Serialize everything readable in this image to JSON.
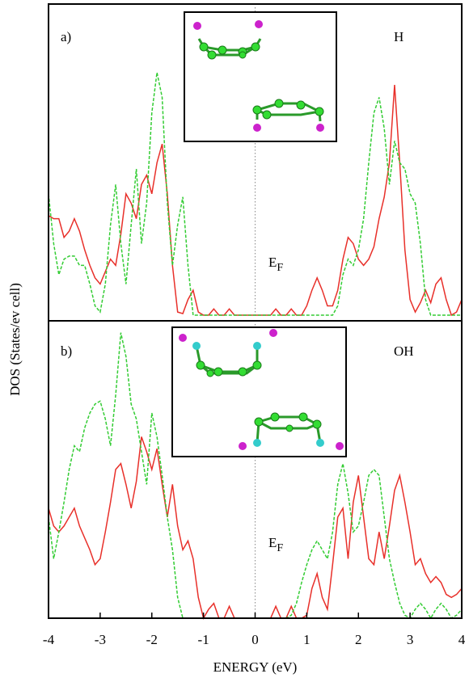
{
  "chart_data": [
    {
      "type": "line",
      "annotations": [
        {
          "text": "a)"
        },
        {
          "text": "H"
        },
        {
          "text": "E",
          "subscript": "F"
        }
      ],
      "ylabel": "DOS (States/ev cell)",
      "x": [
        -4,
        -3.9,
        -3.8,
        -3.7,
        -3.6,
        -3.5,
        -3.4,
        -3.3,
        -3.2,
        -3.1,
        -3,
        -2.9,
        -2.8,
        -2.7,
        -2.6,
        -2.5,
        -2.4,
        -2.3,
        -2.2,
        -2.1,
        -2,
        -1.9,
        -1.8,
        -1.7,
        -1.6,
        -1.5,
        -1.4,
        -1.3,
        -1.2,
        -1.1,
        -1,
        -0.9,
        -0.8,
        -0.7,
        -0.6,
        -0.5,
        -0.4,
        -0.3,
        -0.2,
        -0.1,
        0,
        0.1,
        0.2,
        0.3,
        0.4,
        0.5,
        0.6,
        0.7,
        0.8,
        0.9,
        1,
        1.1,
        1.2,
        1.3,
        1.4,
        1.5,
        1.6,
        1.7,
        1.8,
        1.9,
        2,
        2.1,
        2.2,
        2.3,
        2.4,
        2.5,
        2.6,
        2.7,
        2.8,
        2.9,
        3,
        3.1,
        3.2,
        3.3,
        3.4,
        3.5,
        3.6,
        3.7,
        3.8,
        3.9,
        4
      ],
      "series": [
        {
          "color": "#e8302a",
          "dashed": false,
          "values": [
            32,
            31,
            31,
            25,
            27,
            31,
            27,
            21,
            16,
            12,
            10,
            14,
            18,
            16,
            26,
            39,
            36,
            31,
            42,
            45,
            39,
            49,
            55,
            39,
            16,
            1,
            0.5,
            5,
            8,
            1,
            0,
            0,
            2,
            0,
            0,
            2,
            0,
            0,
            0,
            0,
            0,
            0,
            0,
            0,
            2,
            0,
            0,
            2,
            0,
            0,
            3,
            8,
            12,
            8,
            3,
            3,
            8,
            18,
            25,
            23,
            18,
            16,
            18,
            22,
            31,
            38,
            49,
            74,
            49,
            21,
            5,
            1,
            4,
            8,
            4,
            10,
            12,
            5,
            0,
            1,
            5
          ]
        },
        {
          "color": "#33cc33",
          "dashed": true,
          "values": [
            39,
            23,
            13,
            18,
            19,
            19,
            16,
            16,
            10,
            3,
            1,
            10,
            29,
            42,
            23,
            10,
            29,
            47,
            23,
            36,
            65,
            78,
            70,
            36,
            16,
            29,
            38,
            16,
            0,
            0,
            0,
            0,
            0,
            0,
            0,
            0,
            0,
            0,
            0,
            0,
            0,
            0,
            0,
            0,
            0,
            0,
            0,
            0,
            0,
            0,
            0,
            0,
            0,
            0,
            0,
            0,
            3,
            13,
            18,
            16,
            21,
            31,
            49,
            65,
            70,
            60,
            42,
            56,
            49,
            47,
            39,
            36,
            23,
            5,
            0,
            0,
            0,
            0,
            0,
            0,
            0
          ]
        }
      ],
      "xlim": [
        -4,
        4
      ],
      "ylim": [
        0,
        100
      ]
    },
    {
      "type": "line",
      "annotations": [
        {
          "text": "b)"
        },
        {
          "text": "OH"
        },
        {
          "text": "E",
          "subscript": "F"
        }
      ],
      "xlabel": "ENERGY (eV)",
      "x": [
        -4,
        -3.9,
        -3.8,
        -3.7,
        -3.6,
        -3.5,
        -3.4,
        -3.3,
        -3.2,
        -3.1,
        -3,
        -2.9,
        -2.8,
        -2.7,
        -2.6,
        -2.5,
        -2.4,
        -2.3,
        -2.2,
        -2.1,
        -2,
        -1.9,
        -1.8,
        -1.7,
        -1.6,
        -1.5,
        -1.4,
        -1.3,
        -1.2,
        -1.1,
        -1,
        -0.9,
        -0.8,
        -0.7,
        -0.6,
        -0.5,
        -0.4,
        -0.3,
        -0.2,
        -0.1,
        0,
        0.1,
        0.2,
        0.3,
        0.4,
        0.5,
        0.6,
        0.7,
        0.8,
        0.9,
        1,
        1.1,
        1.2,
        1.3,
        1.4,
        1.5,
        1.6,
        1.7,
        1.8,
        1.9,
        2,
        2.1,
        2.2,
        2.3,
        2.4,
        2.5,
        2.6,
        2.7,
        2.8,
        2.9,
        3,
        3.1,
        3.2,
        3.3,
        3.4,
        3.5,
        3.6,
        3.7,
        3.8,
        3.9,
        4
      ],
      "series": [
        {
          "color": "#e8302a",
          "dashed": false,
          "values": [
            37,
            31,
            29,
            31,
            34,
            37,
            31,
            27,
            23,
            18,
            20,
            29,
            39,
            50,
            52,
            45,
            37,
            46,
            61,
            56,
            50,
            57,
            45,
            34,
            45,
            31,
            23,
            26,
            20,
            7,
            0,
            3,
            5,
            0,
            0,
            4,
            0,
            0,
            0,
            0,
            0,
            0,
            0,
            0,
            4,
            0,
            0,
            4,
            0,
            0,
            1,
            10,
            15,
            7,
            3,
            18,
            34,
            37,
            20,
            39,
            48,
            34,
            20,
            18,
            29,
            20,
            31,
            43,
            48,
            39,
            29,
            18,
            20,
            15,
            12,
            14,
            12,
            8,
            7,
            8,
            10
          ]
        },
        {
          "color": "#33cc33",
          "dashed": true,
          "values": [
            34,
            20,
            29,
            39,
            50,
            58,
            56,
            64,
            69,
            72,
            73,
            67,
            58,
            75,
            96,
            88,
            72,
            67,
            56,
            45,
            69,
            61,
            48,
            34,
            23,
            7,
            0,
            0,
            0,
            0,
            0,
            0,
            0,
            0,
            0,
            0,
            0,
            0,
            0,
            0,
            0,
            0,
            0,
            0,
            0,
            0,
            0,
            1,
            5,
            12,
            18,
            23,
            26,
            23,
            20,
            29,
            45,
            52,
            42,
            29,
            31,
            39,
            48,
            50,
            48,
            34,
            20,
            12,
            5,
            1,
            0,
            3,
            5,
            3,
            0,
            3,
            5,
            3,
            0,
            1,
            3
          ]
        }
      ],
      "xlim": [
        -4,
        4
      ],
      "ylim": [
        0,
        100
      ],
      "xticks": [
        -4,
        -3,
        -2,
        -1,
        0,
        1,
        2,
        3,
        4
      ]
    }
  ]
}
